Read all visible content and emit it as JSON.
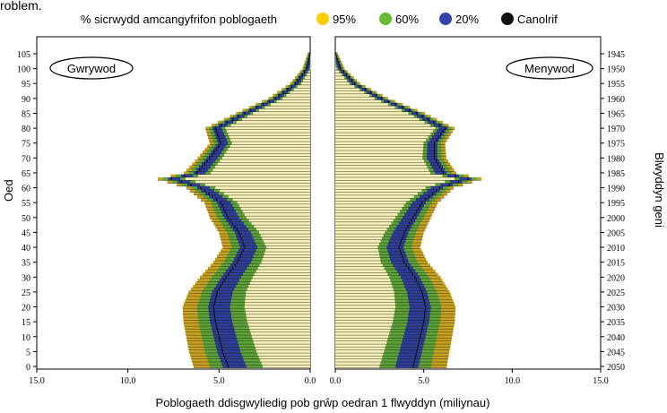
{
  "chart_data": {
    "type": "bar",
    "stub_text": "roblem.",
    "legend": {
      "title": "% sicrwydd amcangyfrifon poblogaeth",
      "items": [
        {
          "label": "95%",
          "color": "#FFCC00"
        },
        {
          "label": "60%",
          "color": "#66BB33"
        },
        {
          "label": "20%",
          "color": "#3344AA"
        },
        {
          "label": "Canolrif",
          "color": "#111111"
        }
      ]
    },
    "left_panel_label": "Gwrywod",
    "right_panel_label": "Menywod",
    "xlabel": "Poblogaeth ddisgwyliedig pob grŵp oedran 1 flwyddyn (miliynau)",
    "ylabel_left": "Oed",
    "ylabel_right": "Blwyddyn geni",
    "x_ticks_left": [
      "15.0",
      "10.0",
      "5.0",
      "0.0"
    ],
    "x_ticks_right": [
      "0.0",
      "5.0",
      "10.0",
      "15.0"
    ],
    "xlim": [
      0,
      15
    ],
    "age_ticks": [
      "0",
      "5",
      "10",
      "15",
      "20",
      "25",
      "30",
      "35",
      "40",
      "45",
      "50",
      "55",
      "60",
      "65",
      "70",
      "75",
      "80",
      "85",
      "90",
      "95",
      "100",
      "105"
    ],
    "birth_year_ticks": [
      "2050",
      "2045",
      "2040",
      "2035",
      "2030",
      "2025",
      "2020",
      "2015",
      "2010",
      "2005",
      "2000",
      "1995",
      "1990",
      "1985",
      "1980",
      "1975",
      "1970",
      "1965",
      "1960",
      "1955",
      "1950",
      "1945"
    ],
    "ylim": [
      0,
      105
    ],
    "series_meta": [
      "lower_95",
      "lower_60",
      "lower_20",
      "median",
      "upper_20",
      "upper_60",
      "upper_95"
    ],
    "median_profile": {
      "age": [
        0,
        5,
        10,
        15,
        20,
        25,
        30,
        35,
        40,
        45,
        50,
        55,
        60,
        63,
        65,
        70,
        75,
        80,
        85,
        90,
        95,
        100,
        105
      ],
      "male": [
        4.5,
        4.8,
        5.0,
        5.2,
        5.3,
        5.1,
        4.6,
        4.0,
        3.6,
        3.9,
        4.5,
        4.9,
        6.0,
        7.6,
        6.2,
        5.5,
        4.9,
        5.2,
        3.6,
        1.9,
        0.8,
        0.2,
        0.0
      ],
      "female": [
        4.4,
        4.6,
        4.8,
        5.0,
        5.1,
        4.9,
        4.5,
        3.9,
        3.6,
        3.9,
        4.4,
        4.9,
        5.9,
        7.5,
        6.1,
        5.6,
        5.6,
        6.2,
        4.6,
        2.6,
        1.1,
        0.3,
        0.0
      ]
    },
    "band_half_widths": {
      "age": [
        0,
        20,
        40,
        60,
        80,
        105
      ],
      "w20": [
        0.3,
        0.3,
        0.25,
        0.2,
        0.15,
        0.05
      ],
      "w60": [
        1.0,
        0.9,
        0.7,
        0.5,
        0.35,
        0.1
      ],
      "w95": [
        1.9,
        1.7,
        1.2,
        0.8,
        0.55,
        0.15
      ]
    },
    "colors": {
      "outer": "#C8A21F",
      "mid": "#5CA43A",
      "inner": "#2E3E9A",
      "median": "#111111",
      "core": "#F4EEB8",
      "axis": "#000000"
    }
  }
}
